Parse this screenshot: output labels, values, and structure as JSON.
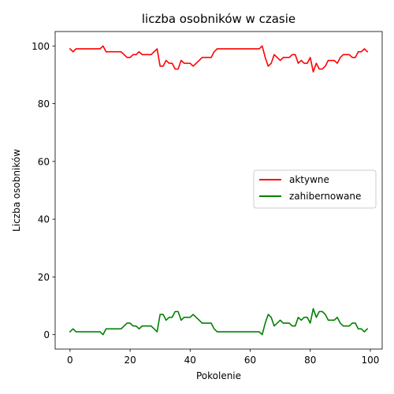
{
  "chart_data": {
    "type": "line",
    "title": "liczba osobników w czasie",
    "xlabel": "Pokolenie",
    "ylabel": "Liczba osobników",
    "xlim": [
      -4.95,
      103.95
    ],
    "ylim": [
      -5,
      105
    ],
    "xticks": [
      0,
      20,
      40,
      60,
      80,
      100
    ],
    "yticks": [
      0,
      20,
      40,
      60,
      80,
      100
    ],
    "grid": false,
    "legend_position": "center-right",
    "x": [
      0,
      1,
      2,
      3,
      4,
      5,
      6,
      7,
      8,
      9,
      10,
      11,
      12,
      13,
      14,
      15,
      16,
      17,
      18,
      19,
      20,
      21,
      22,
      23,
      24,
      25,
      26,
      27,
      28,
      29,
      30,
      31,
      32,
      33,
      34,
      35,
      36,
      37,
      38,
      39,
      40,
      41,
      42,
      43,
      44,
      45,
      46,
      47,
      48,
      49,
      50,
      51,
      52,
      53,
      54,
      55,
      56,
      57,
      58,
      59,
      60,
      61,
      62,
      63,
      64,
      65,
      66,
      67,
      68,
      69,
      70,
      71,
      72,
      73,
      74,
      75,
      76,
      77,
      78,
      79,
      80,
      81,
      82,
      83,
      84,
      85,
      86,
      87,
      88,
      89,
      90,
      91,
      92,
      93,
      94,
      95,
      96,
      97,
      98,
      99
    ],
    "series": [
      {
        "name": "aktywne",
        "color": "#ff0000",
        "values": [
          99,
          98,
          99,
          99,
          99,
          99,
          99,
          99,
          99,
          99,
          99,
          100,
          98,
          98,
          98,
          98,
          98,
          98,
          97,
          96,
          96,
          97,
          97,
          98,
          97,
          97,
          97,
          97,
          98,
          99,
          93,
          93,
          95,
          94,
          94,
          92,
          92,
          95,
          94,
          94,
          94,
          93,
          94,
          95,
          96,
          96,
          96,
          96,
          98,
          99,
          99,
          99,
          99,
          99,
          99,
          99,
          99,
          99,
          99,
          99,
          99,
          99,
          99,
          99,
          100,
          96,
          93,
          94,
          97,
          96,
          95,
          96,
          96,
          96,
          97,
          97,
          94,
          95,
          94,
          94,
          96,
          91,
          94,
          92,
          92,
          93,
          95,
          95,
          95,
          94,
          96,
          97,
          97,
          97,
          96,
          96,
          98,
          98,
          99,
          98
        ]
      },
      {
        "name": "zahibernowane",
        "color": "#008000",
        "values": [
          1,
          2,
          1,
          1,
          1,
          1,
          1,
          1,
          1,
          1,
          1,
          0,
          2,
          2,
          2,
          2,
          2,
          2,
          3,
          4,
          4,
          3,
          3,
          2,
          3,
          3,
          3,
          3,
          2,
          1,
          7,
          7,
          5,
          6,
          6,
          8,
          8,
          5,
          6,
          6,
          6,
          7,
          6,
          5,
          4,
          4,
          4,
          4,
          2,
          1,
          1,
          1,
          1,
          1,
          1,
          1,
          1,
          1,
          1,
          1,
          1,
          1,
          1,
          1,
          0,
          4,
          7,
          6,
          3,
          4,
          5,
          4,
          4,
          4,
          3,
          3,
          6,
          5,
          6,
          6,
          4,
          9,
          6,
          8,
          8,
          7,
          5,
          5,
          5,
          6,
          4,
          3,
          3,
          3,
          4,
          4,
          2,
          2,
          1,
          2
        ]
      }
    ]
  }
}
